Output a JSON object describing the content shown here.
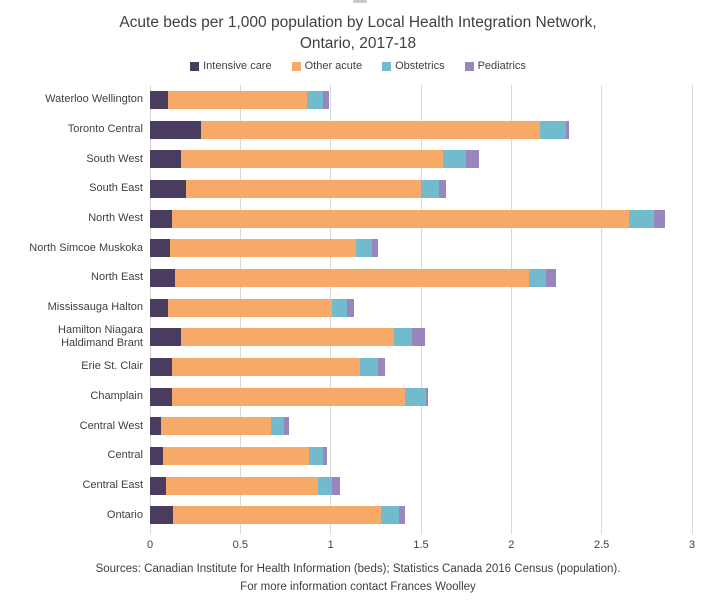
{
  "title": {
    "line1": "Acute beds per 1,000 population by Local Health Integration Network,",
    "line2": "Ontario, 2017-18"
  },
  "chart_data": {
    "type": "bar",
    "orientation": "horizontal",
    "stacked": true,
    "title": "Acute beds per 1,000 population by Local Health Integration Network, Ontario, 2017-18",
    "categories": [
      "Waterloo Wellington",
      "Toronto Central",
      "South West",
      "South East",
      "North West",
      "North Simcoe Muskoka",
      "North East",
      "Mississauga Halton",
      "Hamilton Niagara Haldimand Brant",
      "Erie St. Clair",
      "Champlain",
      "Central West",
      "Central",
      "Central East",
      "Ontario"
    ],
    "series": [
      {
        "name": "Intensive care",
        "color": "#4a3c5f",
        "values": [
          0.1,
          0.28,
          0.17,
          0.2,
          0.12,
          0.11,
          0.14,
          0.1,
          0.17,
          0.12,
          0.12,
          0.06,
          0.07,
          0.09,
          0.13
        ]
      },
      {
        "name": "Other acute",
        "color": "#f7aa67",
        "values": [
          0.77,
          1.88,
          1.45,
          1.3,
          2.53,
          1.03,
          1.96,
          0.91,
          1.18,
          1.04,
          1.29,
          0.61,
          0.81,
          0.84,
          1.15
        ]
      },
      {
        "name": "Obstetrics",
        "color": "#72bbcc",
        "values": [
          0.09,
          0.14,
          0.13,
          0.1,
          0.14,
          0.09,
          0.09,
          0.08,
          0.1,
          0.1,
          0.12,
          0.07,
          0.08,
          0.08,
          0.1
        ]
      },
      {
        "name": "Pediatrics",
        "color": "#9a86be",
        "values": [
          0.03,
          0.02,
          0.07,
          0.04,
          0.06,
          0.03,
          0.06,
          0.04,
          0.07,
          0.04,
          0.01,
          0.03,
          0.02,
          0.04,
          0.03
        ]
      }
    ],
    "xlim": [
      0,
      3
    ],
    "xticks": [
      0,
      0.5,
      1,
      1.5,
      2,
      2.5,
      3
    ],
    "xtick_labels": [
      "0",
      "0.5",
      "1",
      "1.5",
      "2",
      "2.5",
      "3"
    ],
    "grid": true,
    "legend_position": "top",
    "gridline_color": "#d9d9d9"
  },
  "footer": {
    "line1": "Sources: Canadian Institute for Health Information (beds); Statistics Canada 2016 Census (population).",
    "line2": "For more information contact Frances Woolley"
  }
}
